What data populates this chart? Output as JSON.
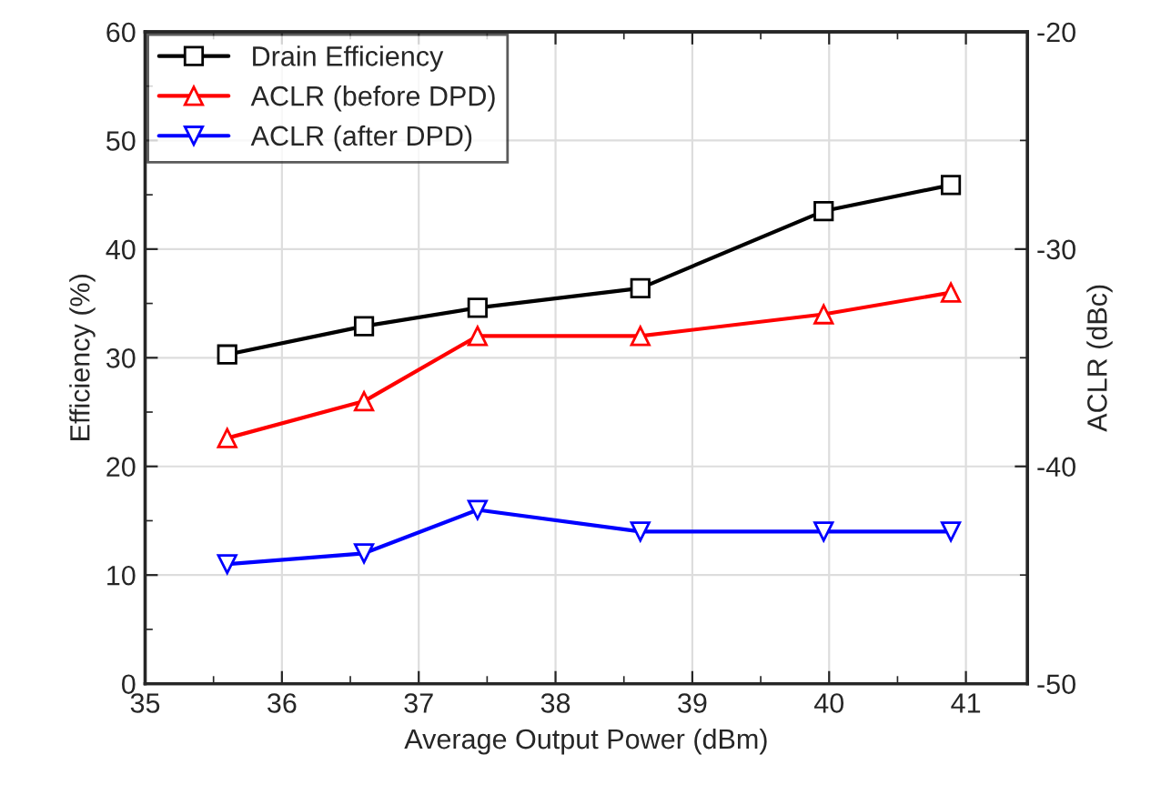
{
  "chart_data": {
    "type": "line",
    "xlabel": "Average Output Power (dBm)",
    "ylabel": "Efficiency (%)",
    "y2label": "ACLR (dBc)",
    "x": [
      35.6,
      36.6,
      37.43,
      38.62,
      39.96,
      40.89
    ],
    "series": [
      {
        "name": "Drain Efficiency",
        "color": "#000000",
        "marker": "square",
        "values": [
          30.3,
          32.9,
          34.6,
          36.4,
          43.5,
          45.9
        ]
      },
      {
        "name": "ACLR (before DPD)",
        "color": "#ff0000",
        "marker": "triangle",
        "axis": "y2",
        "values": [
          -38.7,
          -37.0,
          -34.0,
          -34.0,
          -33.0,
          -32.0
        ]
      },
      {
        "name": "ACLR (after DPD)",
        "color": "#0000ff",
        "marker": "triangle_down",
        "axis": "y2",
        "values": [
          -44.5,
          -44.0,
          -42.0,
          -43.0,
          -43.0,
          -43.0
        ]
      }
    ],
    "xlim": [
      35,
      41.45
    ],
    "xticks": [
      35,
      36,
      37,
      38,
      39,
      40,
      41
    ],
    "ylim": [
      0,
      60
    ],
    "yticks": [
      0,
      10,
      20,
      30,
      40,
      50,
      60
    ],
    "y2lim": [
      -50,
      -20
    ],
    "y2ticks": [
      -50,
      -40,
      -30,
      -20
    ],
    "grid": true,
    "legend": "top left"
  }
}
